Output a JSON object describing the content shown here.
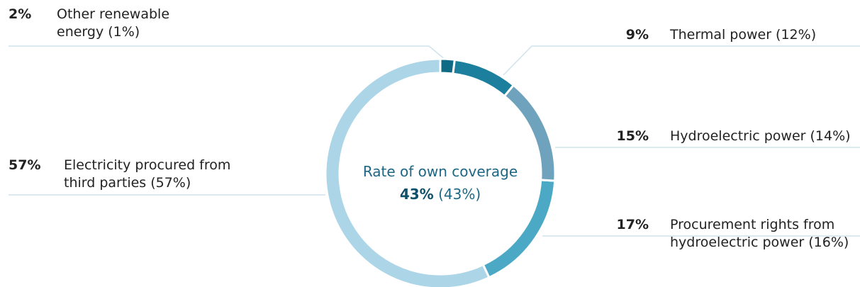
{
  "chart_data": {
    "type": "pie",
    "donut": true,
    "categories": [
      "Other renewable energy (1%)",
      "Thermal power (12%)",
      "Hydroelectric power (14%)",
      "Procurement rights from hydroelectric power (16%)",
      "Electricity procured from third parties (57%)"
    ],
    "values": [
      2,
      9,
      15,
      17,
      57
    ],
    "value_labels": [
      "2%",
      "9%",
      "15%",
      "17%",
      "57%"
    ],
    "colors": [
      "#0f6a86",
      "#1b7f9d",
      "#6fa2bc",
      "#4ba9c5",
      "#acd5e7"
    ],
    "center_title": "Rate of own coverage",
    "center_value": "43%",
    "center_note": "(43%)"
  }
}
